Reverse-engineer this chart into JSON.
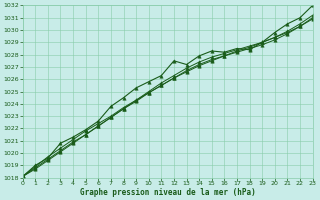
{
  "title": "Graphe pression niveau de la mer (hPa)",
  "bg_color": "#c8ece8",
  "plot_bg_color": "#c8ece8",
  "grid_color": "#88ccaa",
  "line_color": "#1a5c1a",
  "marker_color": "#1a5c1a",
  "xlim": [
    0,
    23
  ],
  "ylim": [
    1018,
    1032
  ],
  "yticks": [
    1018,
    1019,
    1020,
    1021,
    1022,
    1023,
    1024,
    1025,
    1026,
    1027,
    1028,
    1029,
    1030,
    1031,
    1032
  ],
  "xticks": [
    0,
    1,
    2,
    3,
    4,
    5,
    6,
    7,
    8,
    9,
    10,
    11,
    12,
    13,
    14,
    15,
    16,
    17,
    18,
    19,
    20,
    21,
    22,
    23
  ],
  "line_jagged": [
    1018.1,
    1019.0,
    1019.6,
    1020.8,
    1021.3,
    1021.9,
    1022.6,
    1023.8,
    1024.5,
    1025.3,
    1025.8,
    1026.3,
    1027.5,
    1027.2,
    1027.9,
    1028.3,
    1028.2,
    1028.5,
    1028.4,
    1029.0,
    1029.8,
    1030.5,
    1031.0,
    1032.0
  ],
  "line_smooth1": [
    1018.1,
    1018.7,
    1019.4,
    1020.1,
    1020.8,
    1021.5,
    1022.2,
    1022.9,
    1023.6,
    1024.3,
    1025.0,
    1025.7,
    1026.3,
    1026.9,
    1027.4,
    1027.8,
    1028.1,
    1028.4,
    1028.7,
    1029.0,
    1029.4,
    1029.8,
    1030.3,
    1031.0
  ],
  "line_smooth2": [
    1018.1,
    1018.8,
    1019.5,
    1020.2,
    1020.9,
    1021.5,
    1022.2,
    1022.9,
    1023.6,
    1024.2,
    1024.9,
    1025.5,
    1026.1,
    1026.7,
    1027.2,
    1027.6,
    1027.9,
    1028.2,
    1028.5,
    1028.8,
    1029.2,
    1029.7,
    1030.3,
    1030.9
  ],
  "line_smooth3": [
    1018.1,
    1018.9,
    1019.7,
    1020.4,
    1021.1,
    1021.8,
    1022.4,
    1023.0,
    1023.7,
    1024.3,
    1024.9,
    1025.5,
    1026.1,
    1026.6,
    1027.1,
    1027.5,
    1027.9,
    1028.3,
    1028.6,
    1029.0,
    1029.4,
    1029.9,
    1030.5,
    1031.2
  ]
}
